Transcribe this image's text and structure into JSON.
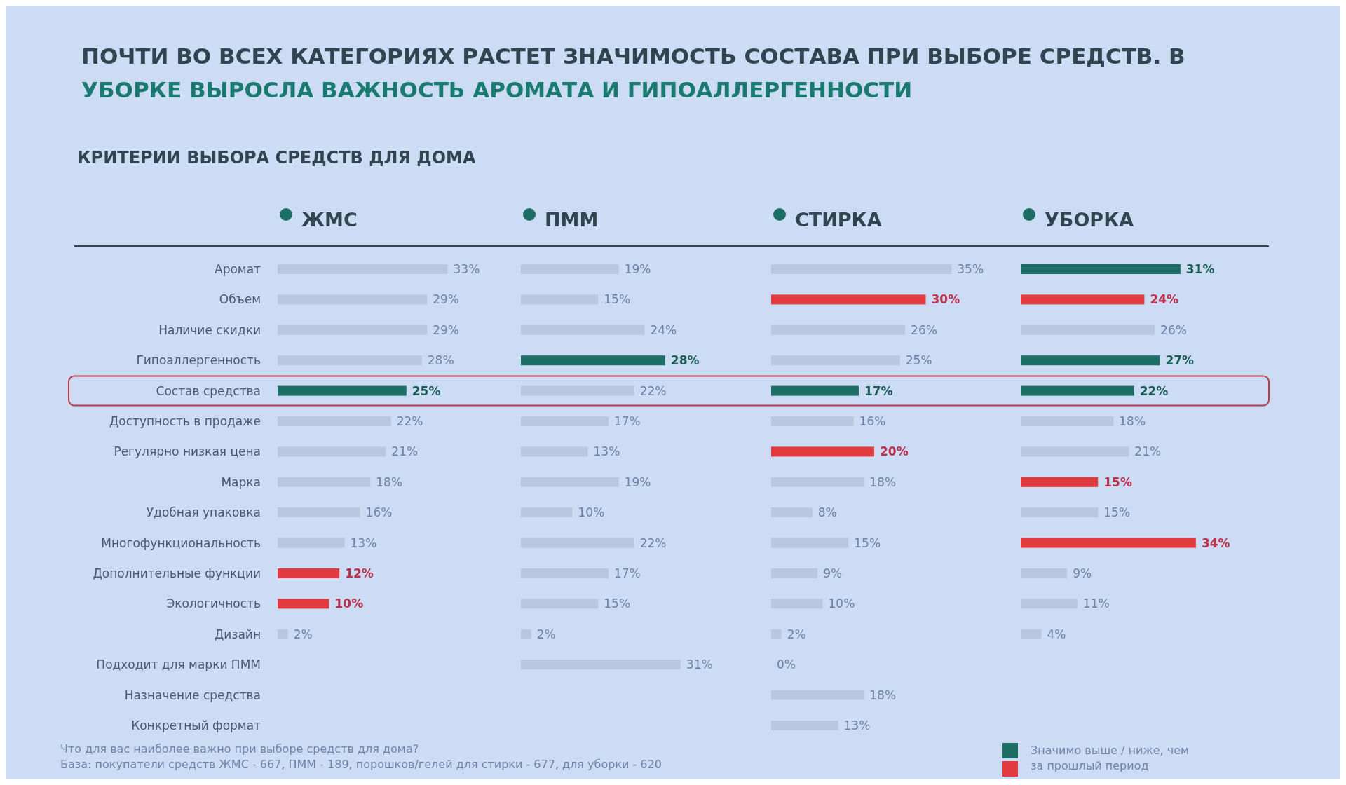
{
  "chart_data": [
    {
      "type": "other",
      "title": "ПОЧТИ ВО ВСЕХ КАТЕГОРИЯХ РАСТЕТ ЗНАЧИМОСТЬ СОСТАВА ПРИ ВЫБОРЕ СРЕДСТВ. В УБОРКЕ ВЫРОСЛА ВАЖНОСТЬ АРОМАТА И ГИПОАЛЛЕРГЕННОСТИ",
      "subtitle": "КРИТЕРИИ ВЫБОРА СРЕДСТВ ДЛЯ ДОМА",
      "annotations": [
        "Что для вас наиболее важно при выборе средств для дома?",
        "База: покупатели средств ЖМС - 667, ПММ - 189, порошков/гелей для стирки - 677, для уборки - 620",
        "Значимо выше / ниже, чем за прошлый период"
      ]
    },
    {
      "type": "bar",
      "orientation": "horizontal",
      "title": "ЖМС",
      "categories": [
        "Аромат",
        "Объем",
        "Наличие скидки",
        "Гипоаллергенность",
        "Состав средства",
        "Доступность в продаже",
        "Регулярно низкая цена",
        "Марка",
        "Удобная упаковка",
        "Многофункциональность",
        "Дополнительные функции",
        "Экологичность",
        "Дизайн",
        "Подходит для марки ПММ",
        "Назначение средства",
        "Конкретный формат"
      ],
      "values": [
        33,
        29,
        29,
        28,
        25,
        22,
        21,
        18,
        16,
        13,
        12,
        10,
        2,
        null,
        null,
        null
      ],
      "value_labels": [
        "33%",
        "29%",
        "29%",
        "28%",
        "25%",
        "22%",
        "21%",
        "18%",
        "16%",
        "13%",
        "12%",
        "10%",
        "2%",
        null,
        null,
        null
      ],
      "colors": [
        "#b8c8e0",
        "#b8c8e0",
        "#b8c8e0",
        "#b8c8e0",
        "#1d6e64",
        "#b8c8e0",
        "#b8c8e0",
        "#b8c8e0",
        "#b8c8e0",
        "#b8c8e0",
        "#e23b3f",
        "#e23b3f",
        "#b8c8e0",
        null,
        null,
        null
      ]
    },
    {
      "type": "bar",
      "orientation": "horizontal",
      "title": "ПММ",
      "tick_labels": false,
      "categories": [
        "Аромат",
        "Объем",
        "Наличие скидки",
        "Гипоаллергенность",
        "Состав средства",
        "Доступность в продаже",
        "Регулярно низкая цена",
        "Марка",
        "Удобная упаковка",
        "Многофункциональность",
        "Дополнительные функции",
        "Экологичность",
        "Дизайн",
        "Подходит для марки ПММ",
        "Назначение средства",
        "Конкретный формат"
      ],
      "values": [
        19,
        15,
        24,
        28,
        22,
        17,
        13,
        19,
        10,
        22,
        17,
        15,
        2,
        31,
        null,
        null
      ],
      "value_labels": [
        "19%",
        "15%",
        "24%",
        "28%",
        "22%",
        "17%",
        "13%",
        "19%",
        "10%",
        "22%",
        "17%",
        "15%",
        "2%",
        "31%",
        null,
        null
      ],
      "colors": [
        "#b8c8e0",
        "#b8c8e0",
        "#b8c8e0",
        "#1d6e64",
        "#b8c8e0",
        "#b8c8e0",
        "#b8c8e0",
        "#b8c8e0",
        "#b8c8e0",
        "#b8c8e0",
        "#b8c8e0",
        "#b8c8e0",
        "#b8c8e0",
        "#b8c8e0",
        null,
        null
      ]
    },
    {
      "type": "bar",
      "orientation": "horizontal",
      "title": "СТИРКА",
      "tick_labels": false,
      "categories": [
        "Аромат",
        "Объем",
        "Наличие скидки",
        "Гипоаллергенность",
        "Состав средства",
        "Доступность в продаже",
        "Регулярно низкая цена",
        "Марка",
        "Удобная упаковка",
        "Многофункциональность",
        "Дополнительные функции",
        "Экологичность",
        "Дизайн",
        "Подходит для марки ПММ",
        "Назначение средства",
        "Конкретный формат"
      ],
      "values": [
        35,
        30,
        26,
        25,
        17,
        16,
        20,
        18,
        8,
        15,
        9,
        10,
        2,
        0,
        18,
        13
      ],
      "value_labels": [
        "35%",
        "30%",
        "26%",
        "25%",
        "17%",
        "16%",
        "20%",
        "18%",
        "8%",
        "15%",
        "9%",
        "10%",
        "2%",
        "0%",
        "18%",
        "13%"
      ],
      "colors": [
        "#b8c8e0",
        "#e23b3f",
        "#b8c8e0",
        "#b8c8e0",
        "#1d6e64",
        "#b8c8e0",
        "#e23b3f",
        "#b8c8e0",
        "#b8c8e0",
        "#b8c8e0",
        "#b8c8e0",
        "#b8c8e0",
        "#b8c8e0",
        "#b8c8e0",
        "#b8c8e0",
        "#b8c8e0"
      ]
    },
    {
      "type": "bar",
      "orientation": "horizontal",
      "title": "УБОРКА",
      "tick_labels": false,
      "categories": [
        "Аромат",
        "Объем",
        "Наличие скидки",
        "Гипоаллергенность",
        "Состав средства",
        "Доступность в продаже",
        "Регулярно низкая цена",
        "Марка",
        "Удобная упаковка",
        "Многофункциональность",
        "Дополнительные функции",
        "Экологичность",
        "Дизайн",
        "Подходит для марки ПММ",
        "Назначение средства",
        "Конкретный формат"
      ],
      "values": [
        31,
        24,
        26,
        27,
        22,
        18,
        21,
        15,
        15,
        34,
        9,
        11,
        4,
        null,
        null,
        null
      ],
      "value_labels": [
        "31%",
        "24%",
        "26%",
        "27%",
        "22%",
        "18%",
        "21%",
        "15%",
        "15%",
        "34%",
        "9%",
        "11%",
        "4%",
        null,
        null,
        null
      ],
      "colors": [
        "#1d6e64",
        "#e23b3f",
        "#b8c8e0",
        "#1d6e64",
        "#1d6e64",
        "#b8c8e0",
        "#b8c8e0",
        "#e23b3f",
        "#b8c8e0",
        "#e23b3f",
        "#b8c8e0",
        "#b8c8e0",
        "#b8c8e0",
        null,
        null,
        null
      ]
    }
  ]
}
